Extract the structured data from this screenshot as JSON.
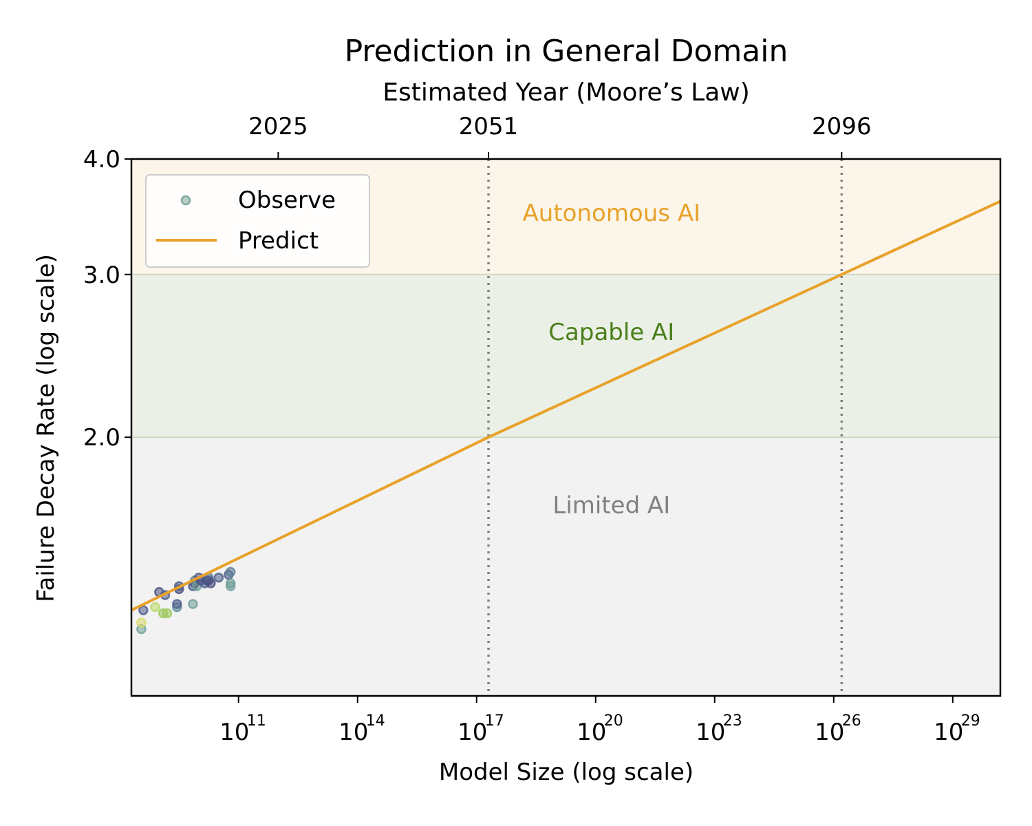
{
  "colors": {
    "predict": "#E8A22A",
    "observe": "#7FA8A0",
    "autonomous_bg": "#FBF5EA",
    "capable_bg": "#EBF0E6",
    "limited_bg": "#F2F2F2",
    "autonomous_text": "#E8A22A",
    "capable_text": "#4A7F1A",
    "limited_text": "#808080",
    "vline": "#808080"
  },
  "chart_data": {
    "type": "scatter",
    "title": "Prediction in General Domain",
    "xlabel": "Model Size (log scale)",
    "ylabel": "Failure Decay Rate (log scale)",
    "top_xlabel": "Estimated Year (Moore’s Law)",
    "x_scale": "log10",
    "y_scale": "log",
    "xlim_log10": [
      8.3,
      30.2
    ],
    "ylim": [
      1.05,
      4.0
    ],
    "x_ticks": [
      {
        "base": "10",
        "exp": "11",
        "log10": 11
      },
      {
        "base": "10",
        "exp": "14",
        "log10": 14
      },
      {
        "base": "10",
        "exp": "17",
        "log10": 17
      },
      {
        "base": "10",
        "exp": "20",
        "log10": 20
      },
      {
        "base": "10",
        "exp": "23",
        "log10": 23
      },
      {
        "base": "10",
        "exp": "26",
        "log10": 26
      },
      {
        "base": "10",
        "exp": "29",
        "log10": 29
      }
    ],
    "y_ticks": [
      {
        "label": "2.0",
        "value": 2.0
      },
      {
        "label": "3.0",
        "value": 3.0
      },
      {
        "label": "4.0",
        "value": 4.0
      }
    ],
    "top_ticks": [
      {
        "label": "2025",
        "log10": 12.0
      },
      {
        "label": "2051",
        "log10": 17.3
      },
      {
        "label": "2096",
        "log10": 26.2
      }
    ],
    "vlines_log10": [
      17.3,
      26.2
    ],
    "regions": [
      {
        "label": "Autonomous AI",
        "y_from": 3.0,
        "y_to": 4.0,
        "label_x_log10": 20.4,
        "label_y": 3.5
      },
      {
        "label": "Capable AI",
        "y_from": 2.0,
        "y_to": 3.0,
        "label_x_log10": 20.4,
        "label_y": 2.6
      },
      {
        "label": "Limited AI",
        "y_from": 1.05,
        "y_to": 2.0,
        "label_x_log10": 20.4,
        "label_y": 1.69
      }
    ],
    "legend": {
      "position": "upper-left",
      "entries": [
        {
          "label": "Observe",
          "kind": "marker"
        },
        {
          "label": "Predict",
          "kind": "line"
        }
      ]
    },
    "series": [
      {
        "name": "Predict",
        "kind": "line",
        "x_log10": [
          8.3,
          17.3,
          26.2,
          30.2
        ],
        "y": [
          1.3,
          2.0,
          3.0,
          3.6
        ]
      },
      {
        "name": "Observe",
        "kind": "scatter",
        "points": [
          {
            "x_log10": 8.55,
            "y": 1.24,
            "color": "#6F9F98"
          },
          {
            "x_log10": 8.55,
            "y": 1.26,
            "color": "#D8DC6A"
          },
          {
            "x_log10": 8.6,
            "y": 1.3,
            "color": "#4E5C8C"
          },
          {
            "x_log10": 8.9,
            "y": 1.31,
            "color": "#B9D86A"
          },
          {
            "x_log10": 9.0,
            "y": 1.36,
            "color": "#4A4F82"
          },
          {
            "x_log10": 9.1,
            "y": 1.29,
            "color": "#9CC95B"
          },
          {
            "x_log10": 9.2,
            "y": 1.29,
            "color": "#9CC95B"
          },
          {
            "x_log10": 9.15,
            "y": 1.35,
            "color": "#4E5C8C"
          },
          {
            "x_log10": 9.45,
            "y": 1.31,
            "color": "#5E8E9A"
          },
          {
            "x_log10": 9.45,
            "y": 1.32,
            "color": "#4E5C8C"
          },
          {
            "x_log10": 9.5,
            "y": 1.37,
            "color": "#4A4F82"
          },
          {
            "x_log10": 9.5,
            "y": 1.38,
            "color": "#4E5C8C"
          },
          {
            "x_log10": 9.85,
            "y": 1.32,
            "color": "#6F9F98"
          },
          {
            "x_log10": 9.85,
            "y": 1.38,
            "color": "#4E5C8C"
          },
          {
            "x_log10": 9.9,
            "y": 1.39,
            "color": "#4A4F82"
          },
          {
            "x_log10": 9.9,
            "y": 1.4,
            "color": "#5E7E94"
          },
          {
            "x_log10": 9.95,
            "y": 1.38,
            "color": "#6F9F98"
          },
          {
            "x_log10": 10.0,
            "y": 1.41,
            "color": "#4E5C8C"
          },
          {
            "x_log10": 10.05,
            "y": 1.4,
            "color": "#4A4F82"
          },
          {
            "x_log10": 10.15,
            "y": 1.39,
            "color": "#4E5C8C"
          },
          {
            "x_log10": 10.2,
            "y": 1.4,
            "color": "#4A4F82"
          },
          {
            "x_log10": 10.25,
            "y": 1.41,
            "color": "#5E7E94"
          },
          {
            "x_log10": 10.25,
            "y": 1.4,
            "color": "#4E5C8C"
          },
          {
            "x_log10": 10.3,
            "y": 1.39,
            "color": "#4A4F82"
          },
          {
            "x_log10": 10.5,
            "y": 1.41,
            "color": "#4E5C8C"
          },
          {
            "x_log10": 10.75,
            "y": 1.42,
            "color": "#4E5C8C"
          },
          {
            "x_log10": 10.8,
            "y": 1.43,
            "color": "#5E7E94"
          },
          {
            "x_log10": 10.8,
            "y": 1.39,
            "color": "#6F9F98"
          },
          {
            "x_log10": 10.8,
            "y": 1.38,
            "color": "#6F9F98"
          }
        ]
      }
    ]
  }
}
